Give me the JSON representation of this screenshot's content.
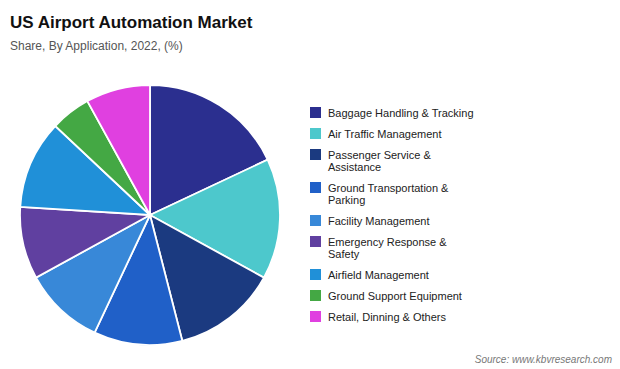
{
  "chart_data": {
    "type": "pie",
    "title": "US Airport Automation Market",
    "subtitle": "Share, By Application, 2022, (%)",
    "source": "Source: www.kbvresearch.com",
    "categories": [
      "Baggage Handling & Tracking",
      "Air Traffic Management",
      "Passenger Service &\nAssistance",
      "Ground Transportation &\nParking",
      "Facility Management",
      "Emergency Response &\nSafety",
      "Airfield Management",
      "Ground Support Equipment",
      "Retail, Dinning & Others"
    ],
    "values": [
      18,
      15,
      13,
      11,
      10,
      9,
      11,
      5,
      8
    ],
    "colors": [
      "#2B2F8F",
      "#4DC8CC",
      "#1B3A80",
      "#2060C8",
      "#3888D8",
      "#6040A0",
      "#2090D8",
      "#44A844",
      "#E040E0"
    ],
    "legend": "right"
  }
}
